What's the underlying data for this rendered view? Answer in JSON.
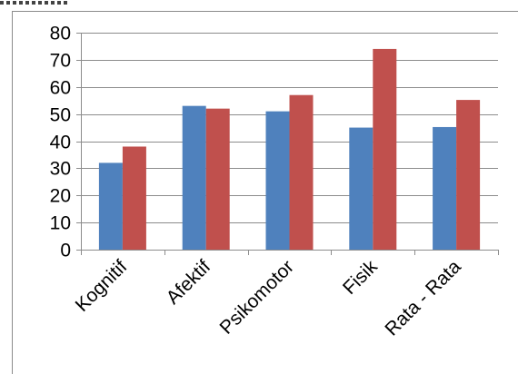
{
  "chart_data": {
    "type": "bar",
    "title": "",
    "xlabel": "",
    "ylabel": "",
    "categories": [
      "Kognitif",
      "Afektif",
      "Psikomotor",
      "Fisik",
      "Rata - Rata"
    ],
    "series": [
      {
        "values": [
          32,
          53,
          51,
          45,
          45.2
        ],
        "color": "#4f81bd"
      },
      {
        "values": [
          38,
          52,
          57,
          74,
          55.2
        ],
        "color": "#c0504d"
      }
    ],
    "ylim": [
      0,
      80
    ],
    "yticks": [
      0,
      10,
      20,
      30,
      40,
      50,
      60,
      70,
      80
    ],
    "grid": true,
    "legend": "none"
  }
}
